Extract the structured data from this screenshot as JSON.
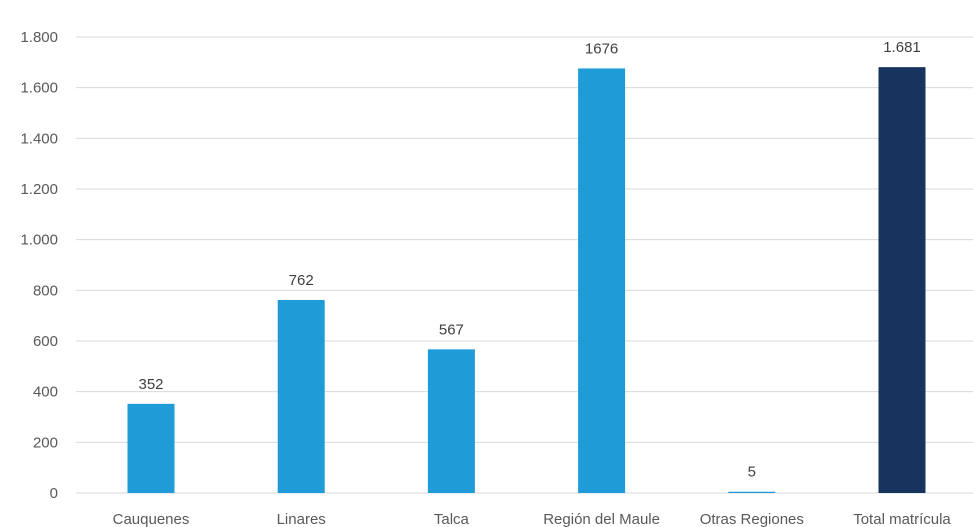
{
  "chart_data": {
    "type": "bar",
    "categories": [
      "Cauquenes",
      "Linares",
      "Talca",
      "Región del Maule",
      "Otras Regiones",
      "Total matrícula"
    ],
    "values": [
      352,
      762,
      567,
      1676,
      5,
      1681
    ],
    "data_labels": [
      "352",
      "762",
      "567",
      "1676",
      "5",
      "1.681"
    ],
    "ylim": [
      0,
      1800
    ],
    "yticks": [
      0,
      200,
      400,
      600,
      800,
      1000,
      1200,
      1400,
      1600,
      1800
    ],
    "ytick_labels": [
      "0",
      "200",
      "400",
      "600",
      "800",
      "1.000",
      "1.200",
      "1.400",
      "1.600",
      "1.800"
    ],
    "grid": true,
    "legend": "none",
    "colors": [
      "#1f9bd7",
      "#1f9bd7",
      "#1f9bd7",
      "#1f9bd7",
      "#1f9bd7",
      "#17345f"
    ]
  }
}
